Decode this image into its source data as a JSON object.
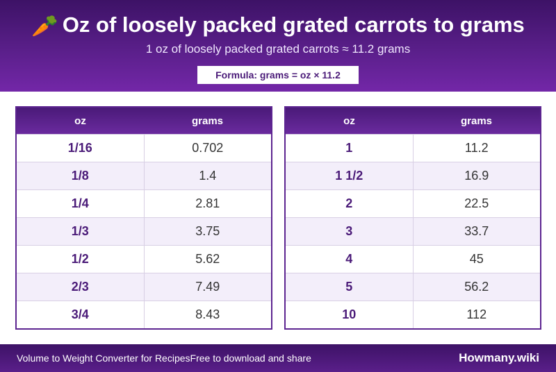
{
  "header": {
    "title_icon": "carrot-icon",
    "title_emoji": "🥕",
    "title": "Oz of loosely packed grated carrots to grams",
    "subtitle": "1 oz of loosely packed grated carrots ≈ 11.2 grams",
    "formula": "Formula: grams = oz × 11.2"
  },
  "tables": [
    {
      "headers": {
        "oz": "oz",
        "grams": "grams"
      },
      "rows": [
        {
          "oz": "1/16",
          "grams": "0.702"
        },
        {
          "oz": "1/8",
          "grams": "1.4"
        },
        {
          "oz": "1/4",
          "grams": "2.81"
        },
        {
          "oz": "1/3",
          "grams": "3.75"
        },
        {
          "oz": "1/2",
          "grams": "5.62"
        },
        {
          "oz": "2/3",
          "grams": "7.49"
        },
        {
          "oz": "3/4",
          "grams": "8.43"
        }
      ]
    },
    {
      "headers": {
        "oz": "oz",
        "grams": "grams"
      },
      "rows": [
        {
          "oz": "1",
          "grams": "11.2"
        },
        {
          "oz": "1 1/2",
          "grams": "16.9"
        },
        {
          "oz": "2",
          "grams": "22.5"
        },
        {
          "oz": "3",
          "grams": "33.7"
        },
        {
          "oz": "4",
          "grams": "45"
        },
        {
          "oz": "5",
          "grams": "56.2"
        },
        {
          "oz": "10",
          "grams": "112"
        }
      ]
    }
  ],
  "footer": {
    "left_text_1": "Volume to Weight Converter for Recipes",
    "left_text_2": "Free to download and share",
    "brand": "Howmany.wiki"
  },
  "colors": {
    "accent": "#5a1f8a",
    "row_alt": "#f3eefa"
  }
}
